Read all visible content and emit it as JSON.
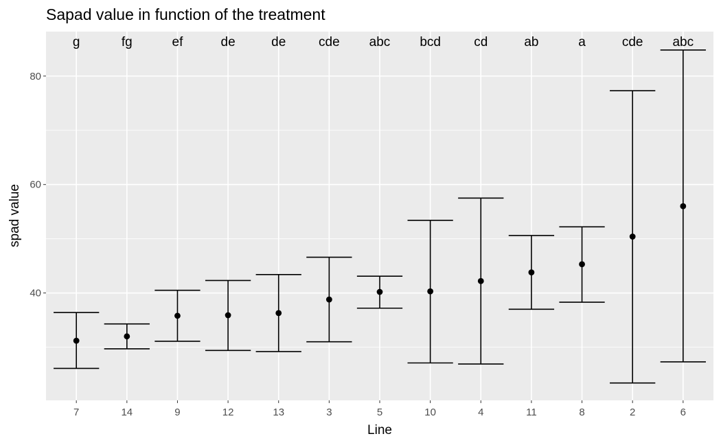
{
  "chart_data": {
    "type": "errorbar",
    "title": "Sapad value in function of the treatment",
    "xlabel": "Line",
    "ylabel": "spad value",
    "ylim": [
      20.2,
      88.2
    ],
    "yticks": [
      40,
      60,
      80
    ],
    "grid": true,
    "panel_color": "#ebebeb",
    "categories": [
      "7",
      "14",
      "9",
      "12",
      "13",
      "3",
      "5",
      "10",
      "4",
      "11",
      "8",
      "2",
      "6"
    ],
    "mean": [
      31.2,
      32.0,
      35.8,
      35.9,
      36.3,
      38.8,
      40.2,
      40.3,
      42.2,
      43.8,
      45.3,
      50.4,
      56.0
    ],
    "lower": [
      26.1,
      29.7,
      31.1,
      29.4,
      29.2,
      31.0,
      37.2,
      27.1,
      26.9,
      37.0,
      38.3,
      23.4,
      27.3
    ],
    "upper": [
      36.4,
      34.3,
      40.5,
      42.3,
      43.4,
      46.6,
      43.1,
      53.4,
      57.5,
      50.6,
      52.2,
      77.3,
      84.8
    ],
    "group_letters": [
      "g",
      "fg",
      "ef",
      "de",
      "de",
      "cde",
      "abc",
      "bcd",
      "cd",
      "ab",
      "a",
      "cde",
      "abc"
    ],
    "letter_y": 84.8
  }
}
